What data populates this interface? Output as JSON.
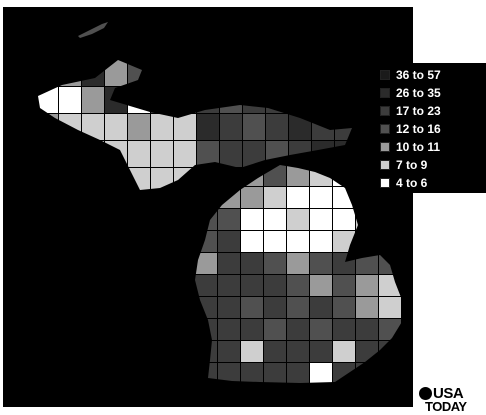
{
  "map": {
    "region": "Michigan",
    "background_color": "#000000"
  },
  "legend": {
    "bins": [
      {
        "label": "36 to 57",
        "color": "#1a1a1a"
      },
      {
        "label": "26 to 35",
        "color": "#2b2b2b"
      },
      {
        "label": "17 to 23",
        "color": "#3c3c3c"
      },
      {
        "label": "12 to 16",
        "color": "#505050"
      },
      {
        "label": "10 to 11",
        "color": "#9a9a9a"
      },
      {
        "label": "7 to 9",
        "color": "#cfcfcf"
      },
      {
        "label": "4 to 6",
        "color": "#ffffff"
      }
    ]
  },
  "logo": {
    "line1": "USA",
    "line2": "TODAY"
  }
}
